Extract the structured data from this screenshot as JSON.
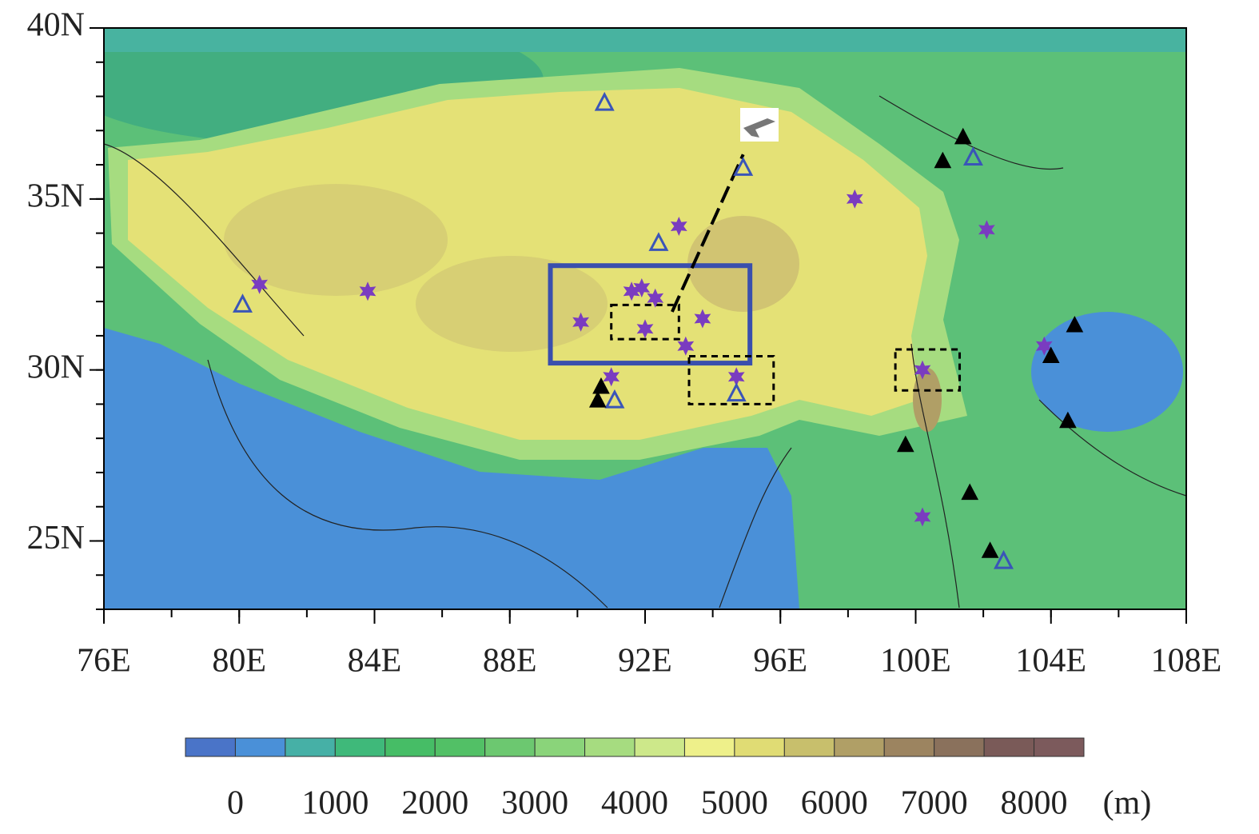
{
  "chart_data": {
    "type": "map",
    "xlim": [
      76,
      108
    ],
    "ylim": [
      23,
      40
    ],
    "xticks": [
      {
        "value": 76,
        "label": "76E"
      },
      {
        "value": 80,
        "label": "80E"
      },
      {
        "value": 84,
        "label": "84E"
      },
      {
        "value": 88,
        "label": "88E"
      },
      {
        "value": 92,
        "label": "92E"
      },
      {
        "value": 96,
        "label": "96E"
      },
      {
        "value": 100,
        "label": "100E"
      },
      {
        "value": 104,
        "label": "104E"
      },
      {
        "value": 108,
        "label": "108E"
      }
    ],
    "yticks": [
      {
        "value": 25,
        "label": "25N"
      },
      {
        "value": 30,
        "label": "30N"
      },
      {
        "value": 35,
        "label": "35N"
      },
      {
        "value": 40,
        "label": "40N"
      }
    ],
    "markers": [
      {
        "shape": "star",
        "color": "#7a3cc0",
        "x": [
          80.6,
          83.8,
          90.1,
          91.6,
          91.9,
          92.3,
          92.0,
          93.0,
          93.7,
          93.2,
          91.0,
          94.7,
          98.2,
          102.1,
          100.2,
          100.2,
          103.8
        ],
        "y": [
          32.5,
          32.3,
          31.4,
          32.3,
          32.4,
          32.1,
          31.2,
          34.2,
          31.5,
          30.7,
          29.8,
          29.8,
          35.0,
          34.1,
          30.0,
          25.7,
          30.7
        ]
      },
      {
        "shape": "open-triangle",
        "color": "#3a55b8",
        "x": [
          90.8,
          94.9,
          92.4,
          80.1,
          91.1,
          94.7,
          101.7,
          102.6
        ],
        "y": [
          37.8,
          35.9,
          33.7,
          31.9,
          29.1,
          29.3,
          36.2,
          24.4
        ]
      },
      {
        "shape": "filled-triangle",
        "color": "#000000",
        "x": [
          101.4,
          100.8,
          90.7,
          90.6,
          104.7,
          104.0,
          104.5,
          99.7,
          101.6,
          102.2
        ],
        "y": [
          36.8,
          36.1,
          29.5,
          29.1,
          31.3,
          30.4,
          28.5,
          27.8,
          26.4,
          24.7
        ]
      }
    ],
    "boxes": [
      {
        "x": [
          89.2,
          95.1
        ],
        "y": [
          30.2,
          33.05
        ],
        "color": "#3a4fad",
        "dashed": false
      },
      {
        "x": [
          91.0,
          93.0
        ],
        "y": [
          30.9,
          31.9
        ],
        "color": "#000000",
        "dashed": true
      },
      {
        "x": [
          93.3,
          95.8
        ],
        "y": [
          29.0,
          30.4
        ],
        "color": "#000000",
        "dashed": true
      },
      {
        "x": [
          99.4,
          101.3
        ],
        "y": [
          29.4,
          30.6
        ],
        "color": "#000000",
        "dashed": true
      }
    ],
    "track": {
      "x": [
        92.8,
        94.9
      ],
      "y": [
        31.7,
        36.3
      ],
      "color": "#000000"
    },
    "colorbar": {
      "lim": [
        -500,
        8500
      ],
      "colors": [
        "#4a74c8",
        "#4a90d8",
        "#46b0a6",
        "#3fb97a",
        "#46bd66",
        "#52c066",
        "#6cc870",
        "#8ad47a",
        "#a6dc80",
        "#cde88a",
        "#eef08a",
        "#e0dc74",
        "#c8bf6c",
        "#b09f66",
        "#9c8460",
        "#8a715c",
        "#7a5a58",
        "#7c5a5c"
      ],
      "ticks": [
        0,
        1000,
        2000,
        3000,
        4000,
        5000,
        6000,
        7000,
        8000
      ],
      "unit": "(m)"
    }
  }
}
